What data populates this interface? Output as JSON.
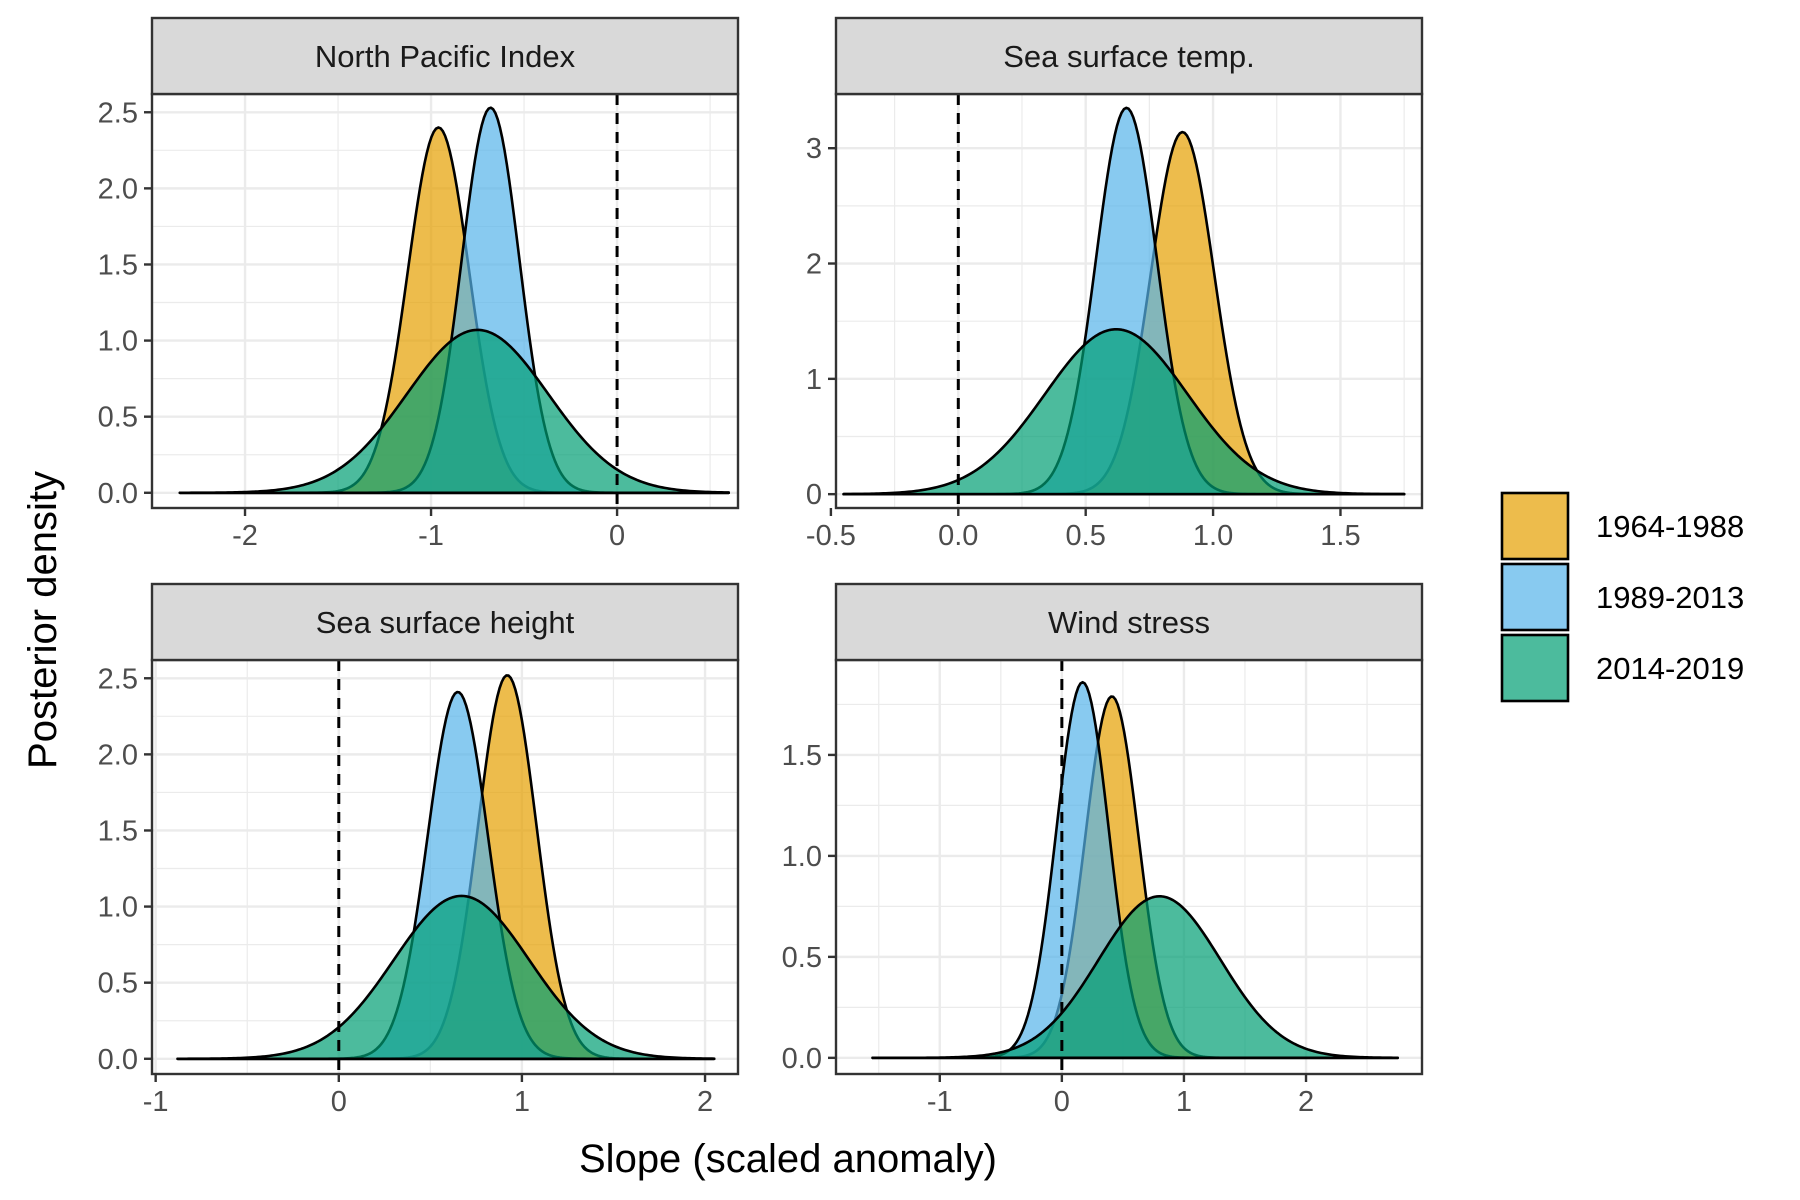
{
  "figure": {
    "xlabel": "Slope (scaled anomaly)",
    "ylabel": "Posterior density"
  },
  "legend": {
    "placement": "right",
    "items": [
      {
        "label": "1964-1988",
        "color": "#E69F00"
      },
      {
        "label": "1989-2013",
        "color": "#56B4E9"
      },
      {
        "label": "2014-2019",
        "color": "#009E73"
      }
    ]
  },
  "chart_data": [
    {
      "type": "area",
      "title": "North Pacific Index",
      "xlim": [
        -2.5,
        0.65
      ],
      "ylim": [
        -0.1,
        2.62
      ],
      "xticks": [
        -2,
        -1,
        0
      ],
      "xtick_labels": [
        "-2",
        "-1",
        "0"
      ],
      "yticks": [
        0,
        0.5,
        1,
        1.5,
        2,
        2.5
      ],
      "ytick_labels": [
        "0.0",
        "0.5",
        "1.0",
        "1.5",
        "2.0",
        "2.5"
      ],
      "reference_x": 0,
      "x_range": [
        -2.35,
        0.6
      ],
      "series": [
        {
          "name": "1964-1988",
          "mean": -0.96,
          "sd": 0.165,
          "peak": 2.4
        },
        {
          "name": "1989-2013",
          "mean": -0.68,
          "sd": 0.155,
          "peak": 2.53
        },
        {
          "name": "2014-2019",
          "mean": -0.75,
          "sd": 0.38,
          "peak": 1.07
        }
      ]
    },
    {
      "type": "area",
      "title": "Sea surface temp.",
      "xlim": [
        -0.48,
        1.82
      ],
      "ylim": [
        -0.12,
        3.47
      ],
      "xticks": [
        -0.5,
        0,
        0.5,
        1,
        1.5
      ],
      "xtick_labels": [
        "-0.5",
        "0.0",
        "0.5",
        "1.0",
        "1.5"
      ],
      "yticks": [
        0,
        1,
        2,
        3
      ],
      "ytick_labels": [
        "0",
        "1",
        "2",
        "3"
      ],
      "reference_x": 0,
      "x_range": [
        -0.45,
        1.75
      ],
      "series": [
        {
          "name": "1964-1988",
          "mean": 0.88,
          "sd": 0.125,
          "peak": 3.14
        },
        {
          "name": "1989-2013",
          "mean": 0.66,
          "sd": 0.12,
          "peak": 3.35
        },
        {
          "name": "2014-2019",
          "mean": 0.62,
          "sd": 0.28,
          "peak": 1.43
        }
      ]
    },
    {
      "type": "area",
      "title": "Sea surface height",
      "xlim": [
        -1.02,
        2.18
      ],
      "ylim": [
        -0.1,
        2.62
      ],
      "xticks": [
        -1,
        0,
        1,
        2
      ],
      "xtick_labels": [
        "-1",
        "0",
        "1",
        "2"
      ],
      "reference_x": 0,
      "yticks": [
        0,
        0.5,
        1,
        1.5,
        2,
        2.5
      ],
      "ytick_labels": [
        "0.0",
        "0.5",
        "1.0",
        "1.5",
        "2.0",
        "2.5"
      ],
      "x_range": [
        -0.88,
        2.05
      ],
      "series": [
        {
          "name": "1964-1988",
          "mean": 0.92,
          "sd": 0.16,
          "peak": 2.52
        },
        {
          "name": "1989-2013",
          "mean": 0.65,
          "sd": 0.165,
          "peak": 2.41
        },
        {
          "name": "2014-2019",
          "mean": 0.67,
          "sd": 0.37,
          "peak": 1.07
        }
      ]
    },
    {
      "type": "area",
      "title": "Wind stress",
      "xlim": [
        -1.85,
        2.95
      ],
      "ylim": [
        -0.08,
        1.97
      ],
      "xticks": [
        -1,
        0,
        1,
        2
      ],
      "xtick_labels": [
        "-1",
        "0",
        "1",
        "2"
      ],
      "yticks": [
        0,
        0.5,
        1,
        1.5
      ],
      "ytick_labels": [
        "0.0",
        "0.5",
        "1.0",
        "1.5"
      ],
      "reference_x": 0,
      "x_range": [
        -1.55,
        2.75
      ],
      "series": [
        {
          "name": "1964-1988",
          "mean": 0.41,
          "sd": 0.22,
          "peak": 1.79
        },
        {
          "name": "1989-2013",
          "mean": 0.17,
          "sd": 0.215,
          "peak": 1.86
        },
        {
          "name": "2014-2019",
          "mean": 0.8,
          "sd": 0.5,
          "peak": 0.8
        }
      ]
    }
  ]
}
